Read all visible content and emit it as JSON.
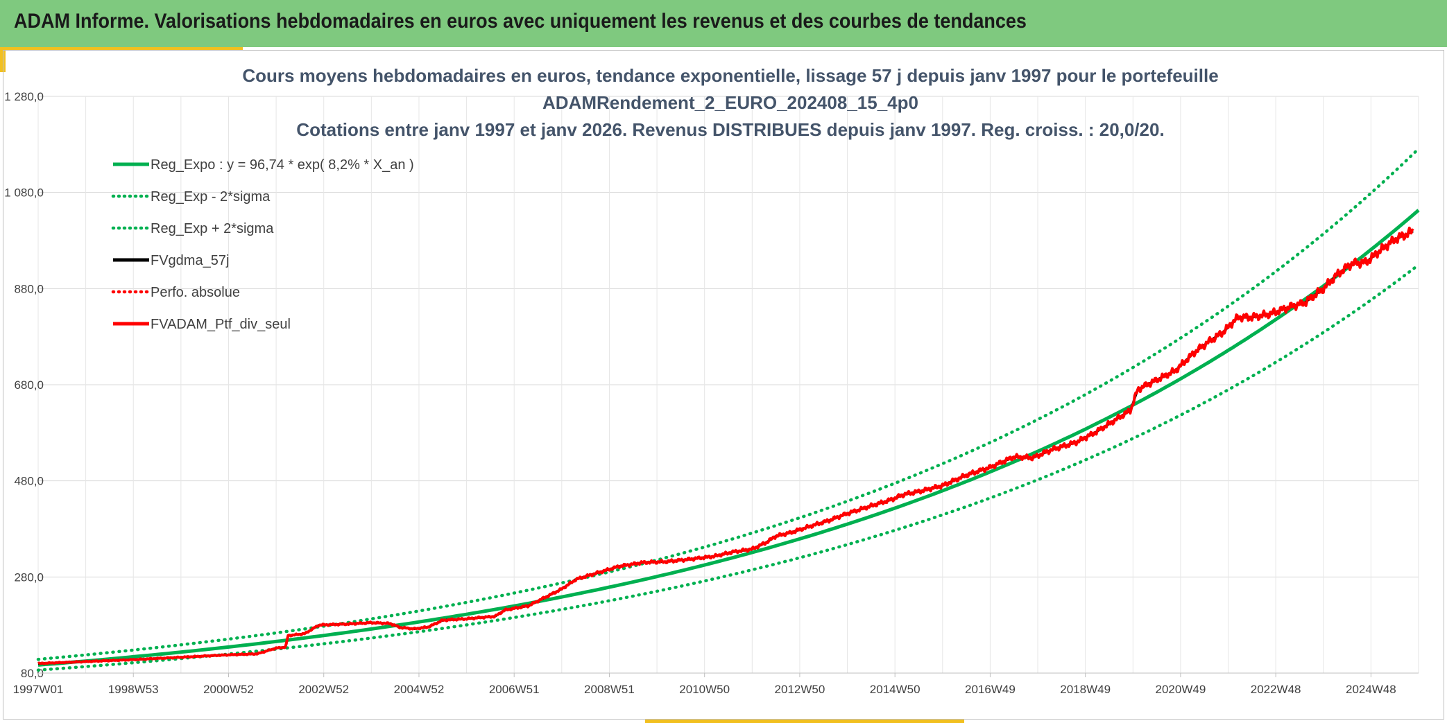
{
  "header": {
    "title": "ADAM Informe. Valorisations hebdomadaires en euros avec uniquement les revenus et des courbes de tendances"
  },
  "colors": {
    "header_bg": "#7fc97f",
    "accent": "#f2c01f",
    "regression": "#00b050",
    "smoothed": "#000000",
    "portfolio": "#ff0000"
  },
  "chart_data": {
    "type": "line",
    "title_lines": [
      "Cours moyens hebdomadaires en euros, tendance exponentielle, lissage 57 j depuis janv 1997 pour le portefeuille",
      "ADAMRendement_2_EURO_202408_15_4p0",
      "Cotations entre janv 1997 et janv 2026. Revenus DISTRIBUES depuis janv 1997. Reg. croiss. : 20,0/20."
    ],
    "xlabel": "",
    "ylabel": "",
    "ylim": [
      80,
      1280
    ],
    "xlim": [
      1997.0,
      2026.0
    ],
    "y_ticks": [
      "80,0",
      "280,0",
      "480,0",
      "680,0",
      "880,0",
      "1 080,0",
      "1 280,0"
    ],
    "x_ticks": [
      "1997W01",
      "1998W53",
      "2000W52",
      "2002W52",
      "2004W52",
      "2006W51",
      "2008W51",
      "2010W50",
      "2012W50",
      "2014W50",
      "2016W49",
      "2018W49",
      "2020W49",
      "2022W48",
      "2024W48"
    ],
    "grid": true,
    "legend_position": "top-left",
    "regression": {
      "a": 96.74,
      "rate": 0.082,
      "sigma_log": 0.1155
    },
    "series": [
      {
        "name": "Reg_Expo : y = 96,74 * exp( 8,2% *  X_an )",
        "color": "#00b050",
        "style": "solid",
        "kind": "exp"
      },
      {
        "name": "Reg_Exp - 2*sigma",
        "color": "#00b050",
        "style": "dotted",
        "kind": "exp_low"
      },
      {
        "name": "Reg_Exp + 2*sigma",
        "color": "#00b050",
        "style": "dotted",
        "kind": "exp_high"
      },
      {
        "name": "FVgdma_57j",
        "color": "#000000",
        "style": "solid",
        "kind": "data"
      },
      {
        "name": "Perfo. absolue",
        "color": "#ff0000",
        "style": "dotted",
        "kind": "legend_only"
      },
      {
        "name": "FVADAM_Ptf_div_seul",
        "color": "#ff0000",
        "style": "solid",
        "kind": "data"
      }
    ],
    "portfolio_points": [
      [
        1997.0,
        100
      ],
      [
        1998.0,
        104
      ],
      [
        1999.0,
        108
      ],
      [
        2000.0,
        113
      ],
      [
        2001.0,
        118
      ],
      [
        2001.6,
        120
      ],
      [
        2002.0,
        132
      ],
      [
        2002.2,
        134
      ],
      [
        2002.25,
        158
      ],
      [
        2002.6,
        162
      ],
      [
        2002.9,
        180
      ],
      [
        2003.5,
        182
      ],
      [
        2004.0,
        185
      ],
      [
        2004.4,
        183
      ],
      [
        2004.6,
        175
      ],
      [
        2004.9,
        172
      ],
      [
        2005.2,
        176
      ],
      [
        2005.5,
        190
      ],
      [
        2006.0,
        193
      ],
      [
        2006.6,
        198
      ],
      [
        2006.8,
        211
      ],
      [
        2007.3,
        220
      ],
      [
        2007.6,
        235
      ],
      [
        2008.0,
        255
      ],
      [
        2008.3,
        275
      ],
      [
        2008.8,
        290
      ],
      [
        2009.2,
        302
      ],
      [
        2009.7,
        310
      ],
      [
        2010.2,
        312
      ],
      [
        2010.7,
        317
      ],
      [
        2011.2,
        323
      ],
      [
        2011.6,
        332
      ],
      [
        2012.0,
        338
      ],
      [
        2012.3,
        352
      ],
      [
        2012.5,
        365
      ],
      [
        2012.8,
        372
      ],
      [
        2013.2,
        385
      ],
      [
        2013.6,
        397
      ],
      [
        2014.0,
        412
      ],
      [
        2014.5,
        428
      ],
      [
        2014.9,
        440
      ],
      [
        2015.2,
        452
      ],
      [
        2015.6,
        460
      ],
      [
        2016.0,
        470
      ],
      [
        2016.5,
        492
      ],
      [
        2017.0,
        508
      ],
      [
        2017.5,
        530
      ],
      [
        2017.9,
        528
      ],
      [
        2018.3,
        545
      ],
      [
        2018.8,
        560
      ],
      [
        2019.2,
        580
      ],
      [
        2019.6,
        605
      ],
      [
        2019.95,
        627
      ],
      [
        2020.1,
        670
      ],
      [
        2020.3,
        680
      ],
      [
        2020.6,
        695
      ],
      [
        2020.9,
        710
      ],
      [
        2021.3,
        748
      ],
      [
        2021.6,
        770
      ],
      [
        2021.9,
        790
      ],
      [
        2022.2,
        820
      ],
      [
        2022.5,
        820
      ],
      [
        2022.9,
        828
      ],
      [
        2023.3,
        842
      ],
      [
        2023.6,
        850
      ],
      [
        2024.0,
        880
      ],
      [
        2024.3,
        910
      ],
      [
        2024.6,
        932
      ],
      [
        2024.9,
        935
      ],
      [
        2025.2,
        960
      ],
      [
        2025.5,
        982
      ],
      [
        2025.9,
        1000
      ]
    ]
  }
}
